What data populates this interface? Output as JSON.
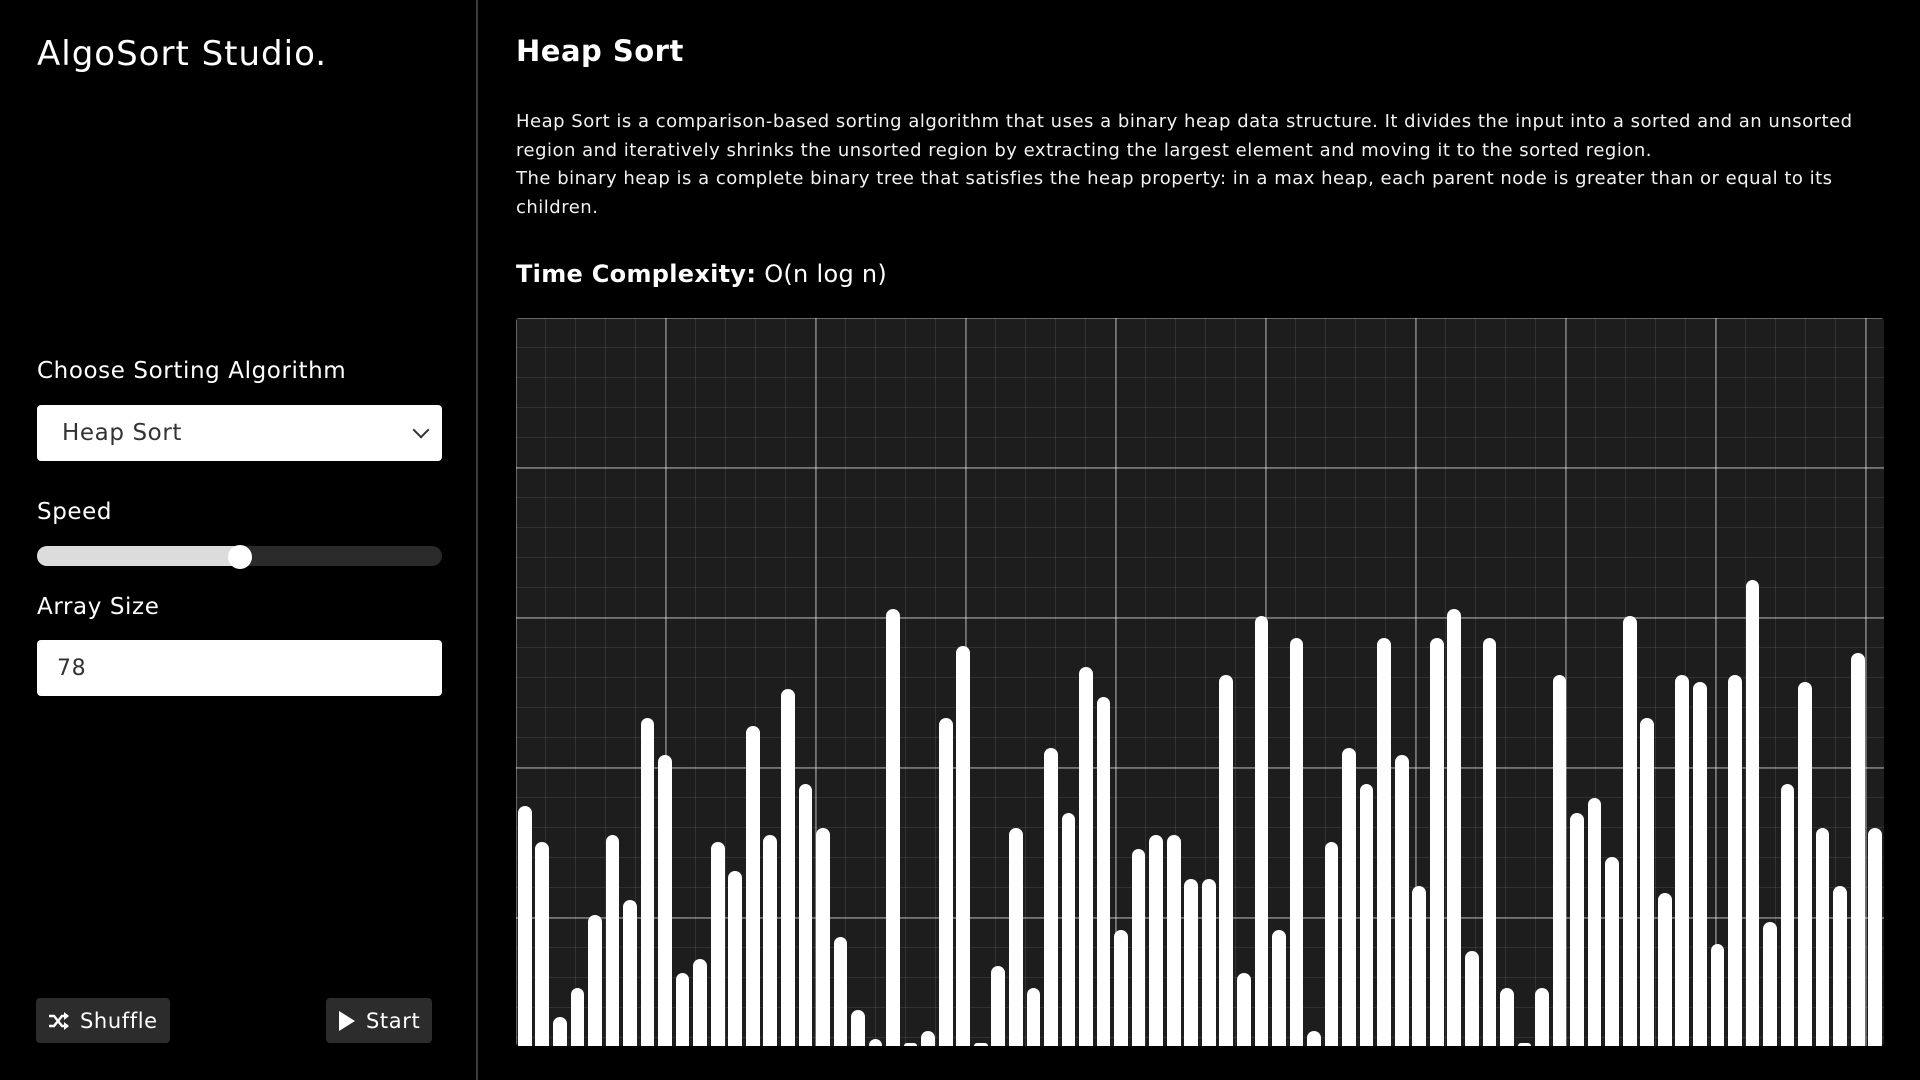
{
  "app": {
    "title": "AlgoSort Studio."
  },
  "sidebar": {
    "algorithm_label": "Choose Sorting Algorithm",
    "algorithm_selected": "Heap Sort",
    "speed_label": "Speed",
    "speed_value_fraction": 0.5,
    "array_size_label": "Array Size",
    "array_size_value": "78",
    "shuffle_label": "Shuffle",
    "start_label": "Start"
  },
  "main": {
    "title": "Heap Sort",
    "description_1": "Heap Sort is a comparison-based sorting algorithm that uses a binary heap data structure. It divides the input into a sorted and an unsorted region and iteratively shrinks the unsorted region by extracting the largest element and moving it to the sorted region.",
    "description_2": "The binary heap is a complete binary tree that satisfies the heap property: in a max heap, each parent node is greater than or equal to its children.",
    "complexity_label": "Time Complexity:",
    "complexity_value": "O(n log n)"
  },
  "colors": {
    "background": "#000000",
    "panel": "#1d1d1d",
    "bar": "#ffffff",
    "button": "#2c2c2c"
  },
  "icons": {
    "shuffle": "shuffle-icon",
    "start": "play-icon",
    "select": "chevron-down-icon"
  },
  "chart_data": {
    "type": "bar",
    "y_max": 100,
    "values": [
      33,
      28,
      4,
      8,
      18,
      29,
      20,
      45,
      40,
      10,
      12,
      28,
      24,
      44,
      29,
      49,
      36,
      30,
      15,
      5,
      1,
      60,
      0,
      2,
      45,
      55,
      0,
      11,
      30,
      8,
      41,
      32,
      52,
      48,
      16,
      27,
      29,
      29,
      23,
      23,
      51,
      10,
      59,
      16,
      56,
      2,
      28,
      41,
      36,
      56,
      40,
      22,
      56,
      60,
      13,
      56,
      8,
      0,
      8,
      51,
      32,
      34,
      26,
      59,
      45,
      21,
      51,
      50,
      14,
      51,
      64,
      17,
      36,
      50,
      30,
      22,
      54,
      30
    ]
  }
}
